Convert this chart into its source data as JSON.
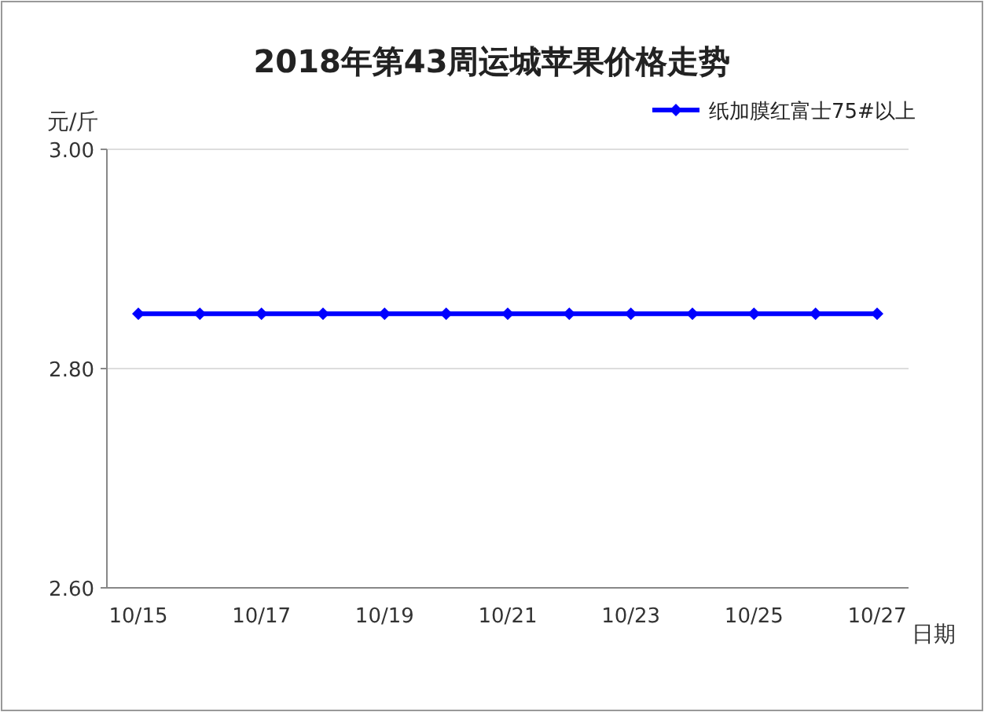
{
  "chart_data": {
    "type": "line",
    "title": "2018年第43周运城苹果价格走势",
    "xlabel": "日期",
    "ylabel": "元/斤",
    "categories": [
      "10/15",
      null,
      "10/17",
      null,
      "10/19",
      null,
      "10/21",
      null,
      "10/23",
      null,
      "10/25",
      null,
      "10/27"
    ],
    "series": [
      {
        "name": "纸加膜红富士75#以上",
        "color": "#0000ff",
        "values": [
          2.85,
          2.85,
          2.85,
          2.85,
          2.85,
          2.85,
          2.85,
          2.85,
          2.85,
          2.85,
          2.85,
          2.85,
          2.85
        ]
      }
    ],
    "ylim": [
      2.6,
      3.0
    ],
    "yticks": [
      {
        "value": 2.6,
        "label": "2.60"
      },
      {
        "value": 2.8,
        "label": "2.80"
      },
      {
        "value": 3.0,
        "label": "3.00"
      }
    ],
    "grid": "y",
    "legend": "top right",
    "marker": "diamond",
    "line_style": "solid"
  }
}
